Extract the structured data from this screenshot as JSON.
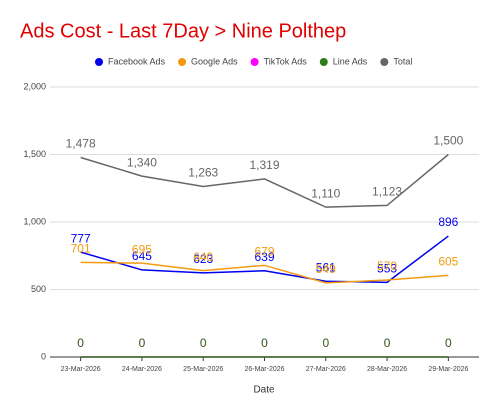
{
  "chart_data": {
    "type": "line",
    "title": "Ads Cost - Last 7Day > Nine Polthep",
    "x_label": "Date",
    "categories": [
      "23-Mar-2026",
      "24-Mar-2026",
      "25-Mar-2026",
      "26-Mar-2026",
      "27-Mar-2026",
      "28-Mar-2026",
      "29-Mar-2026"
    ],
    "series": [
      {
        "name": "Facebook Ads",
        "color": "#0000ee",
        "values": [
          777,
          645,
          623,
          639,
          561,
          553,
          896
        ]
      },
      {
        "name": "Google Ads",
        "color": "#f29b0f",
        "values": [
          701,
          695,
          640,
          679,
          549,
          570,
          605
        ]
      },
      {
        "name": "TikTok Ads",
        "color": "#ff00ff",
        "values": [
          0,
          0,
          0,
          0,
          0,
          0,
          0
        ]
      },
      {
        "name": "Line Ads",
        "color": "#2e7d18",
        "values": [
          0,
          0,
          0,
          0,
          0,
          0,
          0
        ]
      },
      {
        "name": "Total",
        "color": "#666666",
        "values": [
          1478,
          1340,
          1263,
          1319,
          1110,
          1123,
          1500
        ],
        "value_labels": [
          "1,478",
          "1,340",
          "1,263",
          "1,319",
          "1,110",
          "1,123",
          "1,500"
        ]
      }
    ],
    "ylim": [
      0,
      2000
    ],
    "yticks": [
      0,
      500,
      {
        "value": 1000,
        "label": "1,000"
      },
      {
        "value": 1500,
        "label": "1,500"
      },
      {
        "value": 2000,
        "label": "2,000"
      }
    ],
    "grid": true,
    "legend": "top"
  }
}
